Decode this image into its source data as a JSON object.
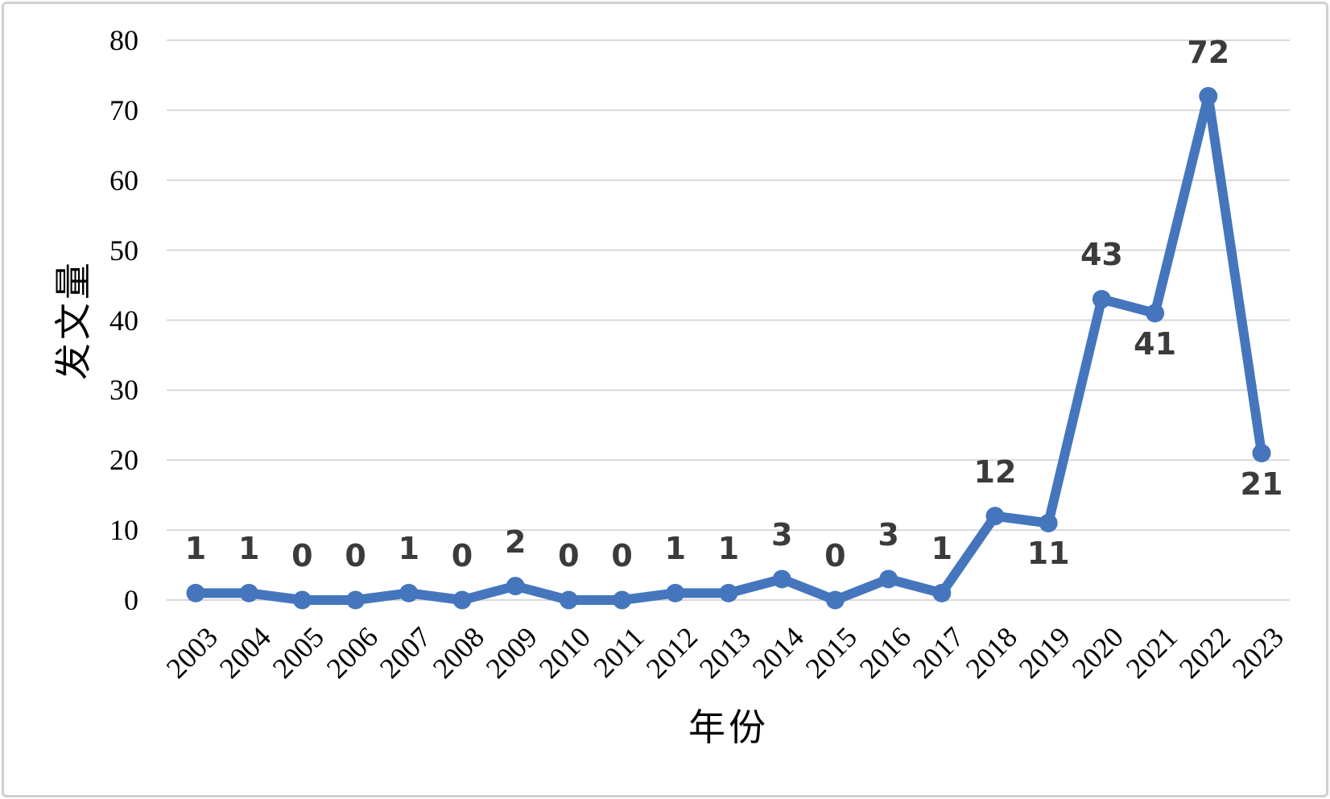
{
  "chart_data": {
    "type": "line",
    "title": "",
    "xlabel": "年份",
    "ylabel": "发文量",
    "categories": [
      "2003",
      "2004",
      "2005",
      "2006",
      "2007",
      "2008",
      "2009",
      "2010",
      "2011",
      "2012",
      "2013",
      "2014",
      "2015",
      "2016",
      "2017",
      "2018",
      "2019",
      "2020",
      "2021",
      "2022",
      "2023"
    ],
    "series": [
      {
        "name": "发文量",
        "values": [
          1,
          1,
          0,
          0,
          1,
          0,
          2,
          0,
          0,
          1,
          1,
          3,
          0,
          3,
          1,
          12,
          11,
          43,
          41,
          72,
          21
        ],
        "data_label_positions": [
          "above",
          "above",
          "above",
          "above",
          "above",
          "above",
          "above",
          "above",
          "above",
          "above",
          "above",
          "above",
          "above",
          "above",
          "above",
          "above",
          "below",
          "above",
          "below",
          "above",
          "below"
        ]
      }
    ],
    "ylim": [
      0,
      80
    ],
    "ytick_interval": 10,
    "yticks": [
      0,
      10,
      20,
      30,
      40,
      50,
      60,
      70,
      80
    ],
    "grid": "horizontal",
    "legend_position": "none",
    "data_labels_shown": true,
    "colors": {
      "line": "#4576BD",
      "marker": "#4576BD",
      "gridline": "#D9D9D9",
      "data_label": "#3B3B3B",
      "tick_label": "#000000",
      "axis_title": "#000000",
      "frame_border": "#D0D0D0",
      "background": "#FFFFFF"
    }
  }
}
